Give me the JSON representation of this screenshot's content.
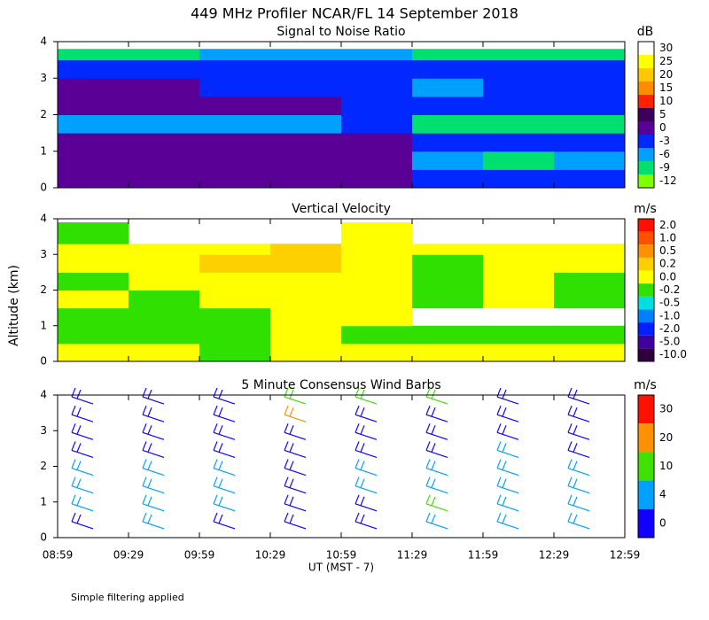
{
  "title": "449 MHz Profiler NCAR/FL 14 September 2018",
  "ylabel": "Altitude (km)",
  "xlabel": "UT  (MST - 7)",
  "footnote": "Simple filtering applied",
  "xtick_labels": [
    "08:59",
    "09:29",
    "09:59",
    "10:29",
    "10:59",
    "11:29",
    "11:59",
    "12:29",
    "12:59"
  ],
  "chart_data": [
    {
      "type": "heatmap",
      "title": "Signal to Noise Ratio",
      "unit": "dB",
      "ylim": [
        0,
        4
      ],
      "yticks": [
        0,
        1,
        2,
        3,
        4
      ],
      "levels": [
        30,
        25,
        20,
        15,
        10,
        5,
        0,
        -3,
        -6,
        -9,
        -12
      ],
      "colors": [
        "#ffffff",
        "#ffff00",
        "#ffc800",
        "#ff8c00",
        "#ff2000",
        "#3c005a",
        "#5a0096",
        "#0028ff",
        "#00a0ff",
        "#00e070",
        "#80ff00"
      ],
      "altitudes": [
        0,
        0.5,
        1,
        1.5,
        2,
        2.5,
        3,
        3.5,
        3.8
      ],
      "values": [
        [
          3,
          3,
          3,
          3,
          3,
          -3,
          -3,
          -3
        ],
        [
          3,
          3,
          3,
          3,
          0,
          -6,
          -9,
          -6
        ],
        [
          3,
          3,
          3,
          3,
          0,
          -3,
          -3,
          -3
        ],
        [
          -6,
          -6,
          -6,
          -6,
          -3,
          -9,
          -9,
          -9
        ],
        [
          3,
          3,
          3,
          3,
          -3,
          -3,
          -3,
          -3
        ],
        [
          0,
          0,
          -3,
          -3,
          -3,
          -6,
          -3,
          -3
        ],
        [
          -3,
          -3,
          -3,
          -3,
          -3,
          -3,
          -3,
          -3
        ],
        [
          -9,
          -9,
          -6,
          -6,
          -6,
          -9,
          -9,
          -9
        ]
      ]
    },
    {
      "type": "heatmap",
      "title": "Vertical Velocity",
      "unit": "m/s",
      "ylim": [
        0,
        4
      ],
      "yticks": [
        0,
        1,
        2,
        3,
        4
      ],
      "levels": [
        {
          "value": 2,
          "label": "2.0"
        },
        {
          "value": 1,
          "label": "1.0"
        },
        0.5,
        0.2,
        {
          "value": 0,
          "label": "0.0"
        },
        -0.2,
        -0.5,
        {
          "value": -1,
          "label": "-1.0"
        },
        {
          "value": -2,
          "label": "-2.0"
        },
        {
          "value": -5,
          "label": "-5.0"
        },
        {
          "value": -10,
          "label": "-10.0"
        }
      ],
      "colors": [
        "#ff1000",
        "#ff5000",
        "#ff9000",
        "#ffd000",
        "#ffff00",
        "#30e000",
        "#00e0e0",
        "#0080ff",
        "#0020ff",
        "#4000a0",
        "#30003c"
      ],
      "altitudes": [
        0,
        0.5,
        1,
        1.5,
        2,
        2.5,
        3,
        3.3,
        3.9
      ],
      "values": [
        [
          0.1,
          0.1,
          -0.1,
          0.1,
          0.1,
          0.1,
          0.1,
          0.1
        ],
        [
          -0.1,
          -0.1,
          -0.1,
          0.1,
          -0.1,
          -0.1,
          -0.1,
          -0.1
        ],
        [
          -0.1,
          -0.1,
          -0.1,
          0.1,
          0.1,
          null,
          null,
          null
        ],
        [
          0.1,
          -0.1,
          0.1,
          0.1,
          0.1,
          -0.1,
          0.1,
          -0.1
        ],
        [
          -0.1,
          0.1,
          0.1,
          0.1,
          0.1,
          -0.1,
          0.1,
          -0.1
        ],
        [
          0.1,
          0.1,
          0.3,
          0.3,
          0.1,
          -0.1,
          0.1,
          0.1
        ],
        [
          0.1,
          0.1,
          0.1,
          0.3,
          0.1,
          0.1,
          0.1,
          0.1
        ],
        [
          -0.1,
          null,
          null,
          null,
          0.1,
          null,
          null,
          null
        ]
      ]
    },
    {
      "type": "barbs",
      "title": "5 Minute Consensus Wind Barbs",
      "unit": "m/s",
      "ylim": [
        0,
        4
      ],
      "yticks": [
        0,
        1,
        2,
        3,
        4
      ],
      "levels": [
        30,
        20,
        10,
        4,
        0
      ],
      "colors": [
        "#ff1000",
        "#ff9000",
        "#40e000",
        "#00a0ff",
        "#1000ff"
      ],
      "altitudes": [
        0.25,
        0.75,
        1.25,
        1.75,
        2.25,
        2.75,
        3.25,
        3.75
      ],
      "values": [
        [
          3,
          5,
          3,
          3,
          2,
          6,
          8,
          8
        ],
        [
          6,
          8,
          6,
          3,
          3,
          10,
          8,
          8
        ],
        [
          5,
          6,
          8,
          2,
          5,
          6,
          8,
          6
        ],
        [
          5,
          6,
          5,
          3,
          5,
          6,
          6,
          6
        ],
        [
          3,
          3,
          3,
          3,
          3,
          3,
          6,
          3
        ],
        [
          3,
          3,
          3,
          3,
          3,
          3,
          3,
          3
        ],
        [
          3,
          3,
          3,
          20,
          3,
          3,
          3,
          3
        ],
        [
          3,
          3,
          3,
          12,
          12,
          12,
          3,
          3
        ]
      ]
    }
  ]
}
